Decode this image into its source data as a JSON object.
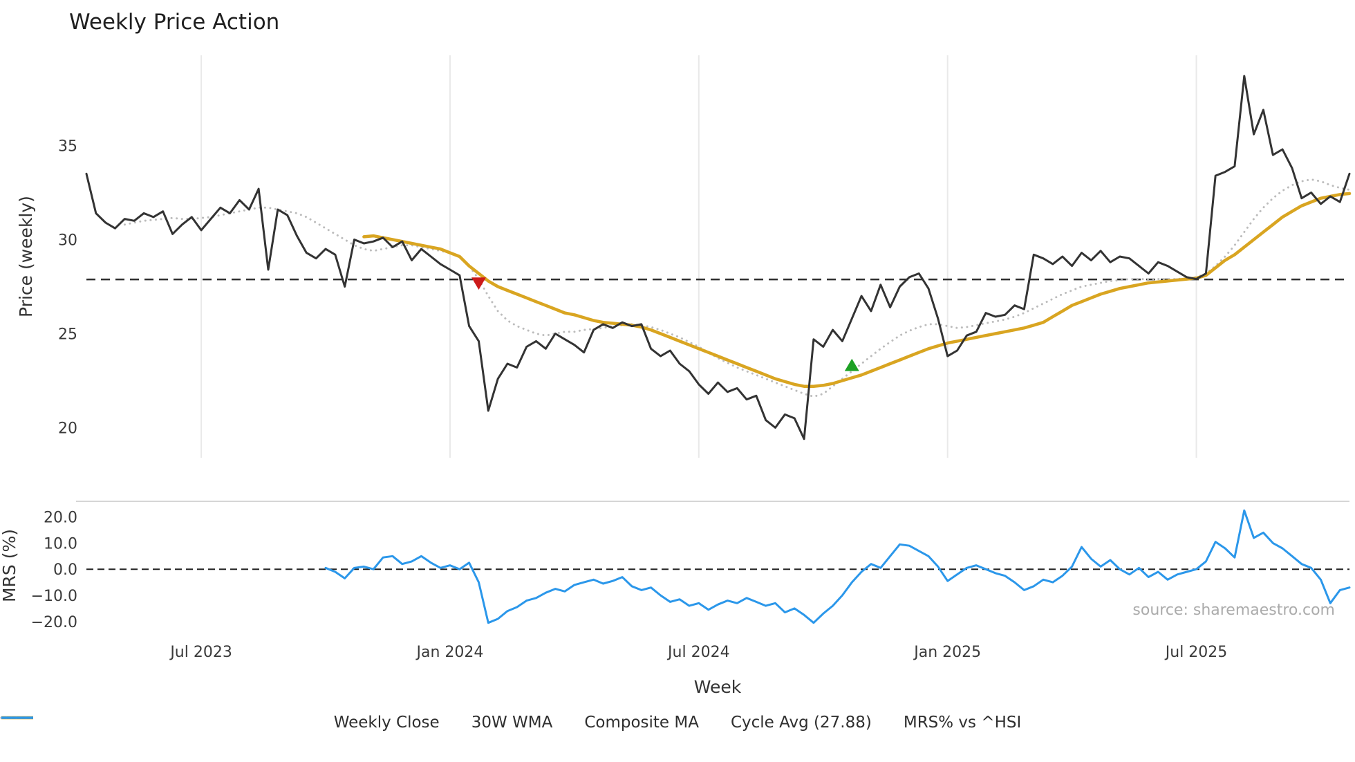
{
  "source_note": "source: sharemaestro.com",
  "chart_data": {
    "type": "line",
    "title": "Weekly Price Action",
    "xlabel": "Week",
    "n_points": 133,
    "grid": "vertical-only",
    "legend_position": "bottom",
    "x_ticks": [
      {
        "index": 12,
        "label": "Jul 2023"
      },
      {
        "index": 38,
        "label": "Jan 2024"
      },
      {
        "index": 64,
        "label": "Jul 2024"
      },
      {
        "index": 90,
        "label": "Jan 2025"
      },
      {
        "index": 116,
        "label": "Jul 2025"
      }
    ],
    "panels": [
      {
        "ylabel": "Price (weekly)",
        "ylim": [
          18.4,
          39.8
        ],
        "yticks": [
          {
            "v": 35,
            "label": "35"
          },
          {
            "v": 30,
            "label": "30"
          },
          {
            "v": 25,
            "label": "25"
          },
          {
            "v": 20,
            "label": "20"
          }
        ],
        "cycle_avg": 27.88,
        "series": [
          {
            "id": "weekly-close",
            "name": "Weekly Close",
            "color": "#333333",
            "style": "solid",
            "width": 3,
            "start_index": 0,
            "values": [
              33.5,
              31.4,
              30.9,
              30.6,
              31.1,
              31.0,
              31.4,
              31.2,
              31.5,
              30.3,
              30.8,
              31.2,
              30.5,
              31.1,
              31.7,
              31.4,
              32.1,
              31.6,
              32.7,
              28.4,
              31.6,
              31.3,
              30.2,
              29.3,
              29.0,
              29.5,
              29.2,
              27.5,
              30.0,
              29.8,
              29.9,
              30.1,
              29.6,
              29.9,
              28.9,
              29.5,
              29.1,
              28.7,
              28.4,
              28.1,
              25.4,
              24.6,
              20.9,
              22.6,
              23.4,
              23.2,
              24.3,
              24.6,
              24.2,
              25.0,
              24.7,
              24.4,
              24.0,
              25.2,
              25.5,
              25.3,
              25.6,
              25.4,
              25.5,
              24.2,
              23.8,
              24.1,
              23.4,
              23.0,
              22.3,
              21.8,
              22.4,
              21.9,
              22.1,
              21.5,
              21.7,
              20.4,
              20.0,
              20.7,
              20.5,
              19.4,
              24.7,
              24.3,
              25.2,
              24.6,
              25.8,
              27.0,
              26.2,
              27.6,
              26.4,
              27.5,
              28.0,
              28.2,
              27.4,
              25.8,
              23.8,
              24.1,
              24.9,
              25.1,
              26.1,
              25.9,
              26.0,
              26.5,
              26.3,
              29.2,
              29.0,
              28.7,
              29.1,
              28.6,
              29.3,
              28.9,
              29.4,
              28.8,
              29.1,
              29.0,
              28.6,
              28.2,
              28.8,
              28.6,
              28.3,
              28.0,
              27.9,
              28.2,
              33.4,
              33.6,
              33.9,
              38.7,
              35.6,
              36.9,
              34.5,
              34.8,
              33.8,
              32.2,
              32.5,
              31.9,
              32.3,
              32.0,
              33.5
            ]
          },
          {
            "id": "wma-30w",
            "name": "30W WMA",
            "color": "#d9a521",
            "style": "solid",
            "width": 4.5,
            "start_index": 29,
            "values": [
              30.15,
              30.2,
              30.1,
              30.0,
              29.9,
              29.8,
              29.7,
              29.6,
              29.5,
              29.3,
              29.1,
              28.6,
              28.2,
              27.8,
              27.5,
              27.3,
              27.1,
              26.9,
              26.7,
              26.5,
              26.3,
              26.1,
              26.0,
              25.85,
              25.7,
              25.6,
              25.55,
              25.5,
              25.45,
              25.35,
              25.2,
              25.0,
              24.8,
              24.6,
              24.4,
              24.2,
              24.0,
              23.8,
              23.6,
              23.4,
              23.2,
              23.0,
              22.8,
              22.6,
              22.45,
              22.3,
              22.2,
              22.2,
              22.25,
              22.35,
              22.5,
              22.65,
              22.8,
              23.0,
              23.2,
              23.4,
              23.6,
              23.8,
              24.0,
              24.2,
              24.35,
              24.5,
              24.6,
              24.7,
              24.8,
              24.9,
              25.0,
              25.1,
              25.2,
              25.3,
              25.45,
              25.6,
              25.9,
              26.2,
              26.5,
              26.7,
              26.9,
              27.1,
              27.25,
              27.4,
              27.5,
              27.6,
              27.7,
              27.75,
              27.8,
              27.85,
              27.9,
              27.95,
              28.1,
              28.5,
              28.9,
              29.2,
              29.6,
              30.0,
              30.4,
              30.8,
              31.2,
              31.5,
              31.8,
              32.0,
              32.2,
              32.3,
              32.4,
              32.45
            ]
          },
          {
            "id": "composite-ma",
            "name": "Composite MA",
            "color": "#bcbcbc",
            "style": "dotted",
            "width": 3,
            "start_index": 4,
            "values": [
              30.8,
              30.9,
              31.0,
              31.05,
              31.1,
              31.15,
              31.1,
              31.1,
              31.15,
              31.2,
              31.3,
              31.4,
              31.5,
              31.6,
              31.7,
              31.7,
              31.6,
              31.5,
              31.4,
              31.2,
              30.9,
              30.6,
              30.3,
              30.0,
              29.7,
              29.5,
              29.4,
              29.5,
              29.6,
              29.7,
              29.7,
              29.6,
              29.5,
              29.4,
              29.3,
              29.1,
              28.6,
              27.9,
              27.0,
              26.2,
              25.7,
              25.4,
              25.2,
              25.0,
              24.9,
              25.0,
              25.1,
              25.1,
              25.2,
              25.25,
              25.3,
              25.4,
              25.45,
              25.5,
              25.45,
              25.35,
              25.2,
              25.0,
              24.8,
              24.55,
              24.3,
              24.0,
              23.7,
              23.45,
              23.2,
              23.0,
              22.8,
              22.6,
              22.4,
              22.2,
              22.0,
              21.8,
              21.65,
              21.8,
              22.2,
              22.6,
              23.0,
              23.4,
              23.8,
              24.2,
              24.55,
              24.9,
              25.15,
              25.35,
              25.5,
              25.5,
              25.4,
              25.3,
              25.35,
              25.45,
              25.55,
              25.65,
              25.75,
              25.9,
              26.1,
              26.35,
              26.6,
              26.85,
              27.1,
              27.3,
              27.5,
              27.6,
              27.7,
              27.8,
              27.85,
              27.9,
              27.9,
              27.9,
              27.9,
              27.9,
              27.9,
              27.95,
              28.0,
              28.2,
              28.6,
              29.1,
              29.7,
              30.4,
              31.1,
              31.7,
              32.2,
              32.6,
              32.9,
              33.1,
              33.2,
              33.1,
              32.9,
              32.75,
              32.65
            ]
          }
        ],
        "markers": [
          {
            "id": "death-cross",
            "shape": "triangle-down",
            "color": "#cc1a1a",
            "index": 41,
            "value": 27.7
          },
          {
            "id": "golden-cross",
            "shape": "triangle-up",
            "color": "#1da125",
            "index": 80,
            "value": 23.3
          }
        ]
      },
      {
        "ylabel": "MRS (%)",
        "ylim": [
          -23.5,
          26
        ],
        "yticks": [
          {
            "v": 20,
            "label": "20.0"
          },
          {
            "v": 10,
            "label": "10.0"
          },
          {
            "v": 0,
            "label": "0.0"
          },
          {
            "v": -10,
            "label": "−10.0"
          },
          {
            "v": -20,
            "label": "−20.0"
          }
        ],
        "zero_line": 0,
        "series": [
          {
            "id": "mrs",
            "name": "MRS% vs ^HSI",
            "color": "#2b97ea",
            "style": "solid",
            "width": 3,
            "start_index": 25,
            "values": [
              0.5,
              -1.0,
              -3.5,
              0.5,
              1.0,
              0.0,
              4.5,
              5.0,
              2.0,
              3.0,
              5.0,
              2.5,
              0.5,
              1.5,
              0.0,
              2.5,
              -5.0,
              -20.5,
              -19.0,
              -16.0,
              -14.5,
              -12.0,
              -11.0,
              -9.0,
              -7.5,
              -8.5,
              -6.0,
              -5.0,
              -4.0,
              -5.5,
              -4.5,
              -3.0,
              -6.5,
              -8.0,
              -7.0,
              -10.0,
              -12.5,
              -11.5,
              -14.0,
              -13.0,
              -15.5,
              -13.5,
              -12.0,
              -13.0,
              -11.0,
              -12.5,
              -14.0,
              -13.0,
              -16.5,
              -15.0,
              -17.5,
              -20.5,
              -17.0,
              -14.0,
              -10.0,
              -5.0,
              -1.0,
              2.0,
              0.5,
              5.0,
              9.5,
              9.0,
              7.0,
              5.0,
              1.0,
              -4.5,
              -2.0,
              0.5,
              1.5,
              0.0,
              -1.5,
              -2.5,
              -5.0,
              -8.0,
              -6.5,
              -4.0,
              -5.0,
              -2.5,
              1.0,
              8.5,
              4.0,
              1.0,
              3.5,
              0.0,
              -2.0,
              0.5,
              -3.0,
              -1.0,
              -4.0,
              -2.0,
              -1.0,
              0.0,
              3.0,
              10.5,
              8.0,
              4.5,
              22.5,
              12.0,
              14.0,
              10.0,
              8.0,
              5.0,
              2.0,
              0.5,
              -4.0,
              -13.0,
              -8.0,
              -7.0
            ]
          }
        ]
      }
    ],
    "legend": [
      {
        "id": "weekly-close",
        "label": "Weekly Close",
        "color": "#333333",
        "style": "solid",
        "width": 3.5
      },
      {
        "id": "wma-30w",
        "label": "30W WMA",
        "color": "#d9a521",
        "style": "solid",
        "width": 4.5
      },
      {
        "id": "composite-ma",
        "label": "Composite MA",
        "color": "#bcbcbc",
        "style": "dotted",
        "width": 3.5
      },
      {
        "id": "cycle-avg",
        "label": "Cycle Avg (27.88)",
        "color": "#3a3a3a",
        "style": "dashed",
        "width": 2.5
      },
      {
        "id": "mrs",
        "label": "MRS% vs ^HSI",
        "color": "#2b97ea",
        "style": "solid",
        "width": 3.5
      }
    ]
  }
}
